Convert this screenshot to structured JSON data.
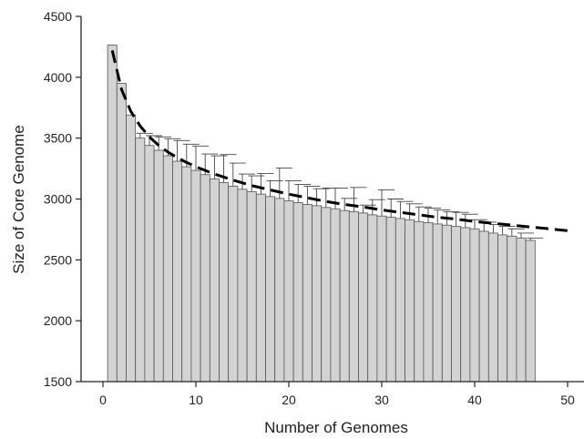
{
  "chart_data": {
    "type": "bar",
    "title": "",
    "xlabel": "Number of Genomes",
    "ylabel": "Size of Core Genome",
    "xlim": [
      -5,
      50
    ],
    "ylim": [
      1500,
      4500
    ],
    "xticks": [
      0,
      10,
      20,
      30,
      40,
      50
    ],
    "yticks": [
      1500,
      2000,
      2500,
      3000,
      3500,
      4000,
      4500
    ],
    "grid": false,
    "legend": "none",
    "bar_color": "#d3d3d3",
    "series": [
      {
        "type": "bar",
        "x": [
          1,
          2,
          3,
          4,
          5,
          6,
          7,
          8,
          9,
          10,
          11,
          12,
          13,
          14,
          15,
          16,
          17,
          18,
          19,
          20,
          21,
          22,
          23,
          24,
          25,
          26,
          27,
          28,
          29,
          30,
          31,
          32,
          33,
          34,
          35,
          36,
          37,
          38,
          39,
          40,
          41,
          42,
          43,
          44,
          45,
          46
        ],
        "values": [
          4265,
          3950,
          3690,
          3500,
          3440,
          3400,
          3355,
          3310,
          3265,
          3235,
          3200,
          3165,
          3135,
          3105,
          3080,
          3060,
          3040,
          3020,
          3005,
          2985,
          2970,
          2955,
          2945,
          2930,
          2920,
          2905,
          2895,
          2885,
          2870,
          2860,
          2850,
          2840,
          2830,
          2815,
          2805,
          2795,
          2785,
          2775,
          2765,
          2755,
          2735,
          2720,
          2705,
          2695,
          2680,
          2660
        ],
        "errors": [
          0,
          0,
          0,
          40,
          80,
          110,
          140,
          170,
          185,
          200,
          170,
          190,
          230,
          190,
          125,
          130,
          170,
          130,
          250,
          165,
          150,
          150,
          140,
          160,
          170,
          100,
          200,
          65,
          125,
          215,
          150,
          140,
          130,
          120,
          120,
          115,
          110,
          115,
          110,
          75,
          75,
          70,
          70,
          60,
          40,
          20
        ]
      },
      {
        "type": "line",
        "style": "dashed",
        "color": "#000000",
        "x": [
          1,
          2,
          3,
          4,
          5,
          6,
          7,
          8,
          9,
          10,
          12,
          14,
          16,
          18,
          20,
          22,
          24,
          26,
          28,
          30,
          32,
          34,
          36,
          38,
          40,
          42,
          44,
          46,
          48,
          50
        ],
        "values": [
          4220,
          3900,
          3720,
          3600,
          3510,
          3440,
          3385,
          3340,
          3300,
          3265,
          3205,
          3155,
          3110,
          3075,
          3040,
          3010,
          2980,
          2955,
          2935,
          2910,
          2890,
          2870,
          2850,
          2835,
          2815,
          2800,
          2785,
          2770,
          2755,
          2740
        ]
      }
    ]
  }
}
